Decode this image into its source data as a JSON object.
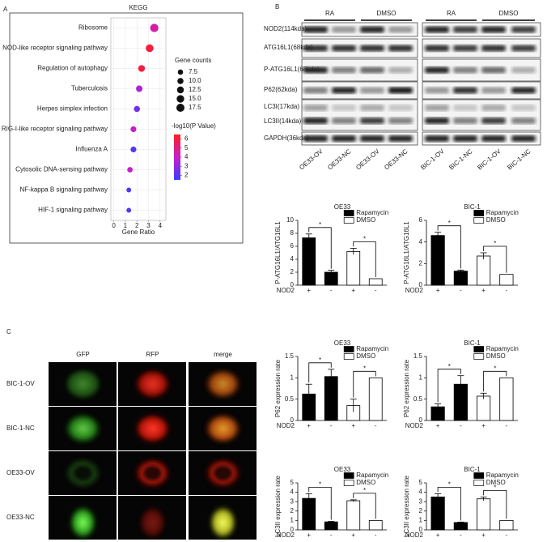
{
  "panel_labels": [
    "A",
    "B",
    "C"
  ],
  "blots": {
    "groups_left": [
      "RA",
      "DMSO"
    ],
    "groups_right": [
      "RA",
      "DMSO"
    ],
    "proteins": [
      "NOD2(114kda)",
      "ATG16L1(68kda)",
      "P-ATG16L1(68kda)",
      "P62(62kda)",
      "LC3I(17kda)",
      "LC3II(14kda)",
      "GAPDH(36kda)"
    ],
    "lanes_left": [
      "OE33-OV",
      "OE33-NC",
      "OE33-OV",
      "OE33-NC"
    ],
    "lanes_right": [
      "BIC-1-OV",
      "BIC-1-NC",
      "BIC-1-OV",
      "BIC-1-NC"
    ]
  },
  "microscopy": {
    "columns": [
      "GFP",
      "RFP",
      "merge"
    ],
    "rows": [
      "BIC-1-OV",
      "BIC-1-NC",
      "OE33-OV",
      "OE33-NC"
    ]
  },
  "chart_data": [
    {
      "type": "scatter",
      "title": "KEGG",
      "xlabel": "Gene Ratio",
      "categories": [
        "Ribosome",
        "NOD-like receptor signaling pathway",
        "Regulation of autophagy",
        "Tuberculosis",
        "Herpes simplex infection",
        "RIG-I-like receptor signaling pathway",
        "Influenza A",
        "Cytosolic DNA-sensing pathway",
        "NF-kappa B signaling pathway",
        "HIF-1 signaling pathway"
      ],
      "x": [
        3.5,
        3.1,
        2.4,
        2.2,
        2.0,
        1.7,
        1.7,
        1.4,
        1.3,
        1.3
      ],
      "sizes": [
        18,
        16,
        12,
        11,
        10,
        9,
        9,
        8,
        6,
        6
      ],
      "values": [
        4.5,
        6,
        6,
        3.5,
        2.5,
        4,
        2,
        4,
        1.8,
        1.8
      ],
      "xlim": [
        -0.25,
        4.5
      ],
      "xticks": [
        0,
        1,
        2,
        3,
        4
      ],
      "grid": true,
      "size_legend": {
        "title": "Gene counts",
        "ticks": [
          7.5,
          {
            "value": 10,
            "label": "10.0"
          },
          12.5,
          {
            "value": 15,
            "label": "15.0"
          },
          17.5
        ]
      },
      "colorbar": {
        "title": "-log10(P Value)",
        "lim": [
          1.5,
          6.5
        ],
        "ticks": [
          2,
          3,
          4,
          5,
          6
        ],
        "colormap": [
          "#3c3cff",
          "#c81ec8",
          "#ff1e1e"
        ]
      }
    },
    {
      "type": "bar",
      "title": "OE33",
      "ylabel": "P-ATG16L1/ATG16L1",
      "xlabel": "NOD2",
      "categories": [
        "+",
        "-",
        "+",
        "-"
      ],
      "series": [
        {
          "name": "Rapamycin",
          "color": "#000000",
          "values": [
            7.3,
            2.0,
            null,
            null
          ],
          "errors": [
            0.6,
            0.3,
            null,
            null
          ]
        },
        {
          "name": "DMSO",
          "color": "#ffffff",
          "values": [
            null,
            null,
            5.2,
            1.0
          ],
          "errors": [
            null,
            null,
            0.5,
            null
          ]
        }
      ],
      "ylim": [
        0,
        10
      ],
      "yticks": [
        0,
        2,
        4,
        6,
        8,
        10
      ],
      "annotations": [
        "*",
        "*"
      ]
    },
    {
      "type": "bar",
      "title": "BIC-1",
      "ylabel": "P-ATG16L1/ATG16L1",
      "xlabel": "NOD2",
      "categories": [
        "+",
        "-",
        "+",
        "-"
      ],
      "series": [
        {
          "name": "Rapamycin",
          "color": "#000000",
          "values": [
            4.6,
            1.3,
            null,
            null
          ],
          "errors": [
            0.3,
            0.1,
            null,
            null
          ]
        },
        {
          "name": "DMSO",
          "color": "#ffffff",
          "values": [
            null,
            null,
            2.7,
            1.0
          ],
          "errors": [
            null,
            null,
            0.3,
            null
          ]
        }
      ],
      "ylim": [
        0,
        6
      ],
      "yticks": [
        0,
        2,
        4,
        6
      ],
      "annotations": [
        "*",
        "*"
      ]
    },
    {
      "type": "bar",
      "title": "OE33",
      "ylabel": "P62 expression rate",
      "xlabel": "NOD2",
      "categories": [
        "+",
        "-",
        "+",
        "-"
      ],
      "series": [
        {
          "name": "Rapamycin",
          "color": "#000000",
          "values": [
            0.62,
            1.03,
            null,
            null
          ],
          "errors": [
            0.23,
            0.17,
            null,
            null
          ]
        },
        {
          "name": "DMSO",
          "color": "#ffffff",
          "values": [
            null,
            null,
            0.35,
            1.0
          ],
          "errors": [
            null,
            null,
            0.15,
            null
          ]
        }
      ],
      "ylim": [
        0,
        1.5
      ],
      "yticks": [
        0,
        0.5,
        1,
        1.5
      ],
      "annotations": [
        "*",
        "*"
      ]
    },
    {
      "type": "bar",
      "title": "BIC-1",
      "ylabel": "P62 expression rate",
      "xlabel": "NOD2",
      "categories": [
        "+",
        "-",
        "+",
        "-"
      ],
      "series": [
        {
          "name": "Rapamycin",
          "color": "#000000",
          "values": [
            0.32,
            0.85,
            null,
            null
          ],
          "errors": [
            0.07,
            0.2,
            null,
            null
          ]
        },
        {
          "name": "DMSO",
          "color": "#ffffff",
          "values": [
            null,
            null,
            0.57,
            1.0
          ],
          "errors": [
            null,
            null,
            0.07,
            null
          ]
        }
      ],
      "ylim": [
        0,
        1.5
      ],
      "yticks": [
        0,
        0.5,
        1,
        1.5
      ],
      "annotations": [
        "*",
        "*"
      ]
    },
    {
      "type": "bar",
      "title": "OE33",
      "ylabel": "LC3II expression rate",
      "xlabel": "NOD2",
      "categories": [
        "+",
        "-",
        "+",
        "-"
      ],
      "series": [
        {
          "name": "Rapamycin",
          "color": "#000000",
          "values": [
            3.35,
            0.85,
            null,
            null
          ],
          "errors": [
            0.5,
            0.05,
            null,
            null
          ]
        },
        {
          "name": "DMSO",
          "color": "#ffffff",
          "values": [
            null,
            null,
            3.1,
            1.0
          ],
          "errors": [
            null,
            null,
            0.1,
            null
          ]
        }
      ],
      "ylim": [
        0,
        5
      ],
      "yticks": [
        0,
        1,
        2,
        3,
        4,
        5
      ],
      "annotations": [
        "*",
        "*"
      ]
    },
    {
      "type": "bar",
      "title": "BIC-1",
      "ylabel": "LC3II expression rate",
      "xlabel": "NOD2",
      "categories": [
        "+",
        "-",
        "+",
        "-"
      ],
      "series": [
        {
          "name": "Rapamycin",
          "color": "#000000",
          "values": [
            3.5,
            0.78,
            null,
            null
          ],
          "errors": [
            0.35,
            0.05,
            null,
            null
          ]
        },
        {
          "name": "DMSO",
          "color": "#ffffff",
          "values": [
            null,
            null,
            3.3,
            1.0
          ],
          "errors": [
            null,
            null,
            0.2,
            null
          ]
        }
      ],
      "ylim": [
        0,
        5
      ],
      "yticks": [
        0,
        1,
        2,
        3,
        4,
        5
      ],
      "annotations": [
        "*",
        "*"
      ]
    }
  ]
}
